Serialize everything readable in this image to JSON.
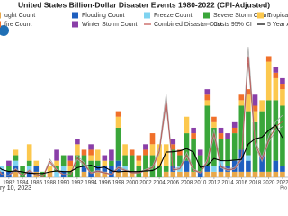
{
  "chart_data": {
    "type": "bar",
    "title": "United States Billion-Dollar Disaster Events 1980-2022 (CPI-Adjusted)",
    "footer_left": "ry 10, 2023",
    "footer_right": "Pro",
    "x": [
      1980,
      1981,
      1982,
      1983,
      1984,
      1985,
      1986,
      1987,
      1988,
      1989,
      1990,
      1991,
      1992,
      1993,
      1994,
      1995,
      1996,
      1997,
      1998,
      1999,
      2000,
      2001,
      2002,
      2003,
      2004,
      2005,
      2006,
      2007,
      2008,
      2009,
      2010,
      2011,
      2012,
      2013,
      2014,
      2015,
      2016,
      2017,
      2018,
      2019,
      2020,
      2021,
      2022
    ],
    "xlim": [
      1980.7,
      2022.8
    ],
    "xticks": [
      1982,
      1984,
      1986,
      1988,
      1990,
      1992,
      1994,
      1996,
      1998,
      2000,
      2002,
      2004,
      2006,
      2008,
      2010,
      2012,
      2014,
      2016,
      2018,
      2020,
      2022
    ],
    "ylim": [
      0,
      26
    ],
    "y2lim": [
      0,
      450
    ],
    "series": [
      {
        "name": "ught Count",
        "color": "#e8a84a",
        "values": [
          1,
          0,
          0,
          1,
          0,
          0,
          1,
          0,
          1,
          0,
          0,
          0,
          0,
          1,
          0,
          1,
          1,
          0,
          1,
          1,
          1,
          0,
          1,
          0,
          0,
          1,
          1,
          1,
          1,
          1,
          0,
          1,
          1,
          1,
          1,
          1,
          1,
          1,
          1,
          1,
          1,
          1,
          1
        ]
      },
      {
        "name": "Flooding Count",
        "color": "#1f5fbf",
        "values": [
          1,
          1,
          1,
          1,
          0,
          1,
          1,
          0,
          0,
          0,
          1,
          0,
          0,
          1,
          1,
          1,
          1,
          2,
          2,
          0,
          0,
          0,
          0,
          0,
          0,
          0,
          1,
          0,
          2,
          0,
          1,
          1,
          0,
          1,
          1,
          2,
          4,
          2,
          0,
          3,
          0,
          2,
          1
        ]
      },
      {
        "name": "Freeze Count",
        "color": "#7fd3f0",
        "values": [
          0,
          1,
          0,
          1,
          0,
          1,
          0,
          0,
          0,
          1,
          1,
          0,
          0,
          0,
          0,
          0,
          0,
          0,
          0,
          1,
          0,
          0,
          0,
          0,
          0,
          0,
          0,
          1,
          0,
          0,
          0,
          0,
          1,
          1,
          0,
          0,
          0,
          1,
          0,
          0,
          0,
          0,
          0
        ]
      },
      {
        "name": "Severe Storm Count",
        "color": "#3aa63a",
        "values": [
          0,
          0,
          1,
          1,
          2,
          1,
          0,
          1,
          0,
          1,
          2,
          1,
          4,
          2,
          2,
          1,
          0,
          1,
          6,
          2,
          3,
          2,
          3,
          4,
          2,
          1,
          3,
          2,
          5,
          6,
          3,
          11,
          7,
          4,
          5,
          5,
          8,
          8,
          9,
          8,
          13,
          11,
          11
        ]
      },
      {
        "name": "Tropical Cyclo",
        "color": "#fcc84e",
        "values": [
          1,
          0,
          0,
          1,
          0,
          3,
          1,
          0,
          1,
          1,
          0,
          1,
          2,
          0,
          1,
          2,
          1,
          0,
          2,
          2,
          0,
          1,
          0,
          2,
          4,
          4,
          0,
          0,
          3,
          0,
          0,
          1,
          1,
          0,
          0,
          0,
          1,
          3,
          2,
          2,
          7,
          4,
          3
        ]
      },
      {
        "name": "fire Count",
        "color": "#f0702a",
        "values": [
          0,
          0,
          0,
          0,
          0,
          0,
          0,
          0,
          0,
          0,
          0,
          1,
          0,
          1,
          1,
          0,
          0,
          0,
          1,
          0,
          1,
          1,
          1,
          2,
          0,
          0,
          1,
          1,
          0,
          1,
          0,
          1,
          1,
          1,
          0,
          1,
          1,
          1,
          1,
          0,
          1,
          1,
          1
        ]
      },
      {
        "name": "Winter Storm Count",
        "color": "#8a3fa8",
        "values": [
          0,
          0,
          1,
          0,
          0,
          0,
          0,
          0,
          0,
          2,
          0,
          1,
          1,
          0,
          1,
          0,
          1,
          2,
          0,
          0,
          0,
          0,
          1,
          0,
          0,
          0,
          1,
          0,
          0,
          1,
          1,
          1,
          0,
          1,
          1,
          1,
          0,
          0,
          2,
          0,
          0,
          1,
          1
        ]
      },
      {
        "name": "Combined Disaster Cost",
        "type": "line",
        "axis": "y2",
        "color": "#c0504d",
        "values": [
          40,
          8,
          6,
          24,
          5,
          21,
          6,
          2,
          50,
          22,
          8,
          8,
          61,
          42,
          13,
          19,
          14,
          9,
          30,
          22,
          14,
          14,
          22,
          30,
          82,
          240,
          23,
          27,
          70,
          23,
          14,
          50,
          138,
          33,
          23,
          27,
          58,
          380,
          107,
          55,
          118,
          159,
          175
        ]
      },
      {
        "name": "Costs 95% CI",
        "type": "band",
        "axis": "y2",
        "color": "#aaaaaa",
        "lower": [
          36,
          7,
          5,
          21,
          4,
          19,
          5,
          2,
          45,
          20,
          7,
          7,
          56,
          38,
          12,
          17,
          13,
          8,
          27,
          20,
          13,
          13,
          20,
          27,
          75,
          225,
          21,
          25,
          64,
          21,
          13,
          46,
          128,
          30,
          21,
          25,
          53,
          360,
          99,
          50,
          110,
          148,
          160
        ],
        "upper": [
          46,
          9,
          7,
          28,
          6,
          24,
          7,
          3,
          57,
          25,
          9,
          9,
          68,
          47,
          15,
          22,
          16,
          10,
          34,
          25,
          16,
          16,
          25,
          34,
          92,
          262,
          26,
          31,
          79,
          26,
          16,
          56,
          152,
          37,
          26,
          31,
          65,
          410,
          118,
          62,
          130,
          175,
          195
        ]
      },
      {
        "name": "5 Year Avg Co",
        "type": "line",
        "axis": "y2",
        "color": "#000000",
        "values": [
          40,
          24,
          18,
          20,
          17,
          13,
          12,
          12,
          17,
          20,
          18,
          18,
          30,
          35,
          38,
          29,
          32,
          20,
          17,
          19,
          18,
          18,
          20,
          21,
          32,
          79,
          80,
          83,
          90,
          79,
          31,
          37,
          59,
          52,
          52,
          54,
          56,
          104,
          121,
          126,
          148,
          164,
          124
        ]
      }
    ]
  }
}
